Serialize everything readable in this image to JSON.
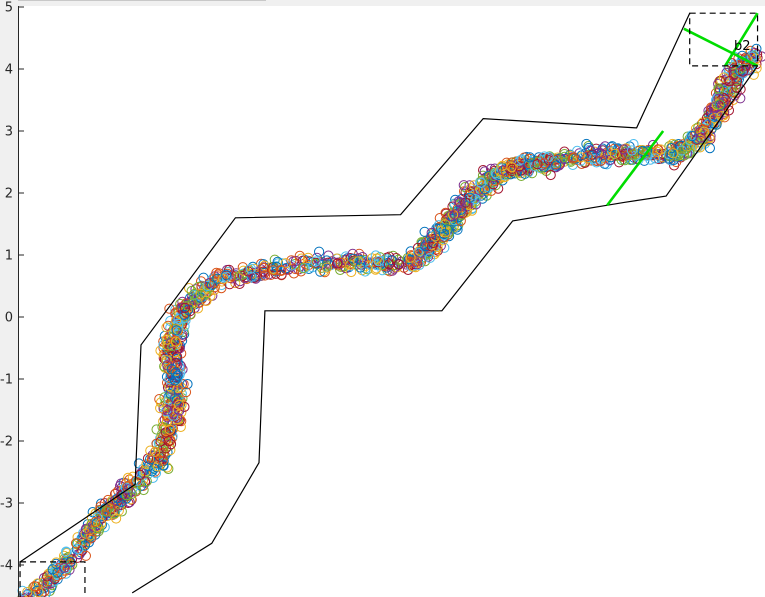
{
  "chart_data": {
    "type": "scatter",
    "title": "",
    "xlabel": "",
    "ylabel": "",
    "ylim": [
      -4.45,
      5.0
    ],
    "y_ticks": [
      {
        "value": 5,
        "label": "5"
      },
      {
        "value": 4,
        "label": "4"
      },
      {
        "value": 3,
        "label": "3"
      },
      {
        "value": 2,
        "label": "2"
      },
      {
        "value": 1,
        "label": "1"
      },
      {
        "value": 0,
        "label": "0"
      },
      {
        "value": -1,
        "label": "-1"
      },
      {
        "value": -2,
        "label": "-2"
      },
      {
        "value": -3,
        "label": "-3"
      },
      {
        "value": -4,
        "label": "-4"
      }
    ],
    "grid": false,
    "marker": "open-circle",
    "series_colors": [
      "#0072bd",
      "#d95319",
      "#edb120",
      "#7e2f8e",
      "#77ac30",
      "#4dbeee",
      "#a2142f"
    ],
    "center_path": [
      [
        -0.1,
        -4.75
      ],
      [
        0.55,
        -4.15
      ],
      [
        1.2,
        -3.4
      ],
      [
        1.7,
        -2.9
      ],
      [
        2.3,
        -2.3
      ],
      [
        2.55,
        -1.6
      ],
      [
        2.6,
        -1.0
      ],
      [
        2.5,
        -0.45
      ],
      [
        2.75,
        0.15
      ],
      [
        3.3,
        0.6
      ],
      [
        4.3,
        0.8
      ],
      [
        5.6,
        0.9
      ],
      [
        6.6,
        0.85
      ],
      [
        7.05,
        1.3
      ],
      [
        7.35,
        1.65
      ],
      [
        7.75,
        2.1
      ],
      [
        8.2,
        2.4
      ],
      [
        8.6,
        2.45
      ],
      [
        9.3,
        2.55
      ],
      [
        10.1,
        2.65
      ],
      [
        11.0,
        2.6
      ],
      [
        11.5,
        2.9
      ],
      [
        11.8,
        3.4
      ],
      [
        12.05,
        3.9
      ],
      [
        12.4,
        4.25
      ]
    ],
    "corridor_boundaries": [
      {
        "name": "left-boundary",
        "color": "#000000",
        "points": [
          [
            -0.05,
            -3.95
          ],
          [
            1.9,
            -2.7
          ],
          [
            2.0,
            -0.45
          ],
          [
            3.6,
            1.6
          ],
          [
            6.4,
            1.65
          ],
          [
            7.8,
            3.2
          ],
          [
            10.4,
            3.05
          ],
          [
            11.3,
            4.9
          ]
        ]
      },
      {
        "name": "right-boundary",
        "color": "#000000",
        "points": [
          [
            1.85,
            -4.45
          ],
          [
            3.2,
            -3.65
          ],
          [
            4.0,
            -2.35
          ],
          [
            4.1,
            0.1
          ],
          [
            7.1,
            0.1
          ],
          [
            8.3,
            1.55
          ],
          [
            10.2,
            1.85
          ],
          [
            10.9,
            1.95
          ],
          [
            12.45,
            4.05
          ]
        ]
      }
    ],
    "gates": [
      {
        "name": "green-gate-upper",
        "color": "#00dd00",
        "points": [
          [
            11.2,
            4.65
          ],
          [
            12.45,
            4.05
          ]
        ]
      },
      {
        "name": "green-gate-upper-diag",
        "color": "#00dd00",
        "points": [
          [
            11.9,
            4.05
          ],
          [
            12.45,
            4.9
          ]
        ]
      },
      {
        "name": "green-gate-middle",
        "color": "#00dd00",
        "points": [
          [
            9.9,
            1.8
          ],
          [
            10.85,
            3.0
          ]
        ]
      }
    ],
    "dashed_boxes": [
      {
        "name": "goal-box",
        "points": [
          [
            11.3,
            4.05
          ],
          [
            12.45,
            4.9
          ]
        ]
      },
      {
        "name": "start-box",
        "points": [
          [
            -0.05,
            -4.8
          ],
          [
            1.05,
            -3.95
          ]
        ]
      }
    ],
    "annotations": [
      {
        "name": "goal-label",
        "text": "b2",
        "x": 12.05,
        "y": 4.38
      }
    ]
  }
}
